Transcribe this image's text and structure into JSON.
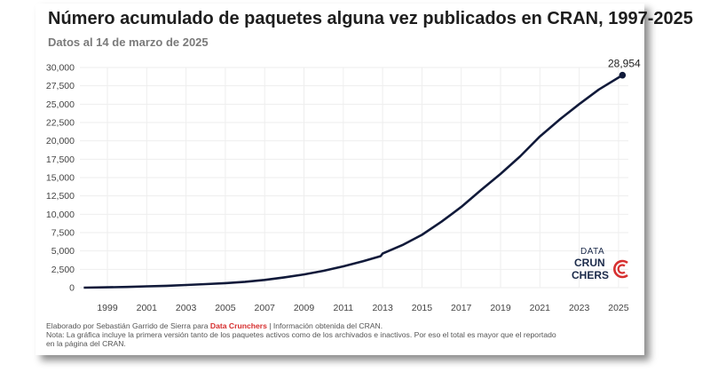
{
  "chart_data": {
    "type": "line",
    "title": "Número acumulado de paquetes alguna vez publicados en CRAN, 1997-2025",
    "subtitle": "Datos al 14 de marzo de 2025",
    "xlabel": "",
    "ylabel": "",
    "xlim": [
      1997.6,
      2025.5
    ],
    "ylim": [
      0,
      30000
    ],
    "grid": true,
    "x_ticks": [
      1999,
      2001,
      2003,
      2005,
      2007,
      2009,
      2011,
      2013,
      2015,
      2017,
      2019,
      2021,
      2023,
      2025
    ],
    "y_ticks": [
      0,
      2500,
      5000,
      7500,
      10000,
      12500,
      15000,
      17500,
      20000,
      22500,
      25000,
      27500,
      30000
    ],
    "y_tick_labels": [
      "0",
      "2,500",
      "5,000",
      "7,500",
      "10,000",
      "12,500",
      "15,000",
      "17,500",
      "20,000",
      "22,500",
      "25,000",
      "27,500",
      "30,000"
    ],
    "line_color": "#111a3a",
    "series": [
      {
        "x": [
          1997.8,
          1999,
          2000,
          2001,
          2002,
          2003,
          2004,
          2005,
          2006,
          2007,
          2008,
          2009,
          2010,
          2011,
          2012,
          2012.9,
          2013,
          2014,
          2015,
          2016,
          2017,
          2018,
          2019,
          2020,
          2021,
          2022,
          2023,
          2024,
          2025.2
        ],
        "y": [
          0,
          50,
          100,
          180,
          260,
          360,
          480,
          620,
          800,
          1050,
          1400,
          1800,
          2300,
          2900,
          3600,
          4300,
          4650,
          5800,
          7200,
          9000,
          11000,
          13300,
          15500,
          17900,
          20600,
          22900,
          25000,
          27000,
          28954
        ]
      }
    ],
    "annotations": [
      {
        "text": "28,954",
        "x": 2025.2,
        "y": 28954
      }
    ]
  },
  "logo": {
    "line1": "DATA",
    "line2": "CRUN",
    "line3": "CHERS"
  },
  "footnote": {
    "line1_prefix": "Elaborado por Sebastián Garrido de Sierra  para ",
    "brand": "Data Crunchers",
    "line1_suffix": " |  Información obtenida del CRAN.",
    "line2": "Nota: La gráfica incluye la primera versión tanto de los paquetes activos como de los archivados e inactivos.  Por eso el total es mayor que el reportado",
    "line3": "en la página del CRAN."
  },
  "colors": {
    "accent": "#d62f2f",
    "line": "#111a3a",
    "grid": "#eeeeee"
  }
}
